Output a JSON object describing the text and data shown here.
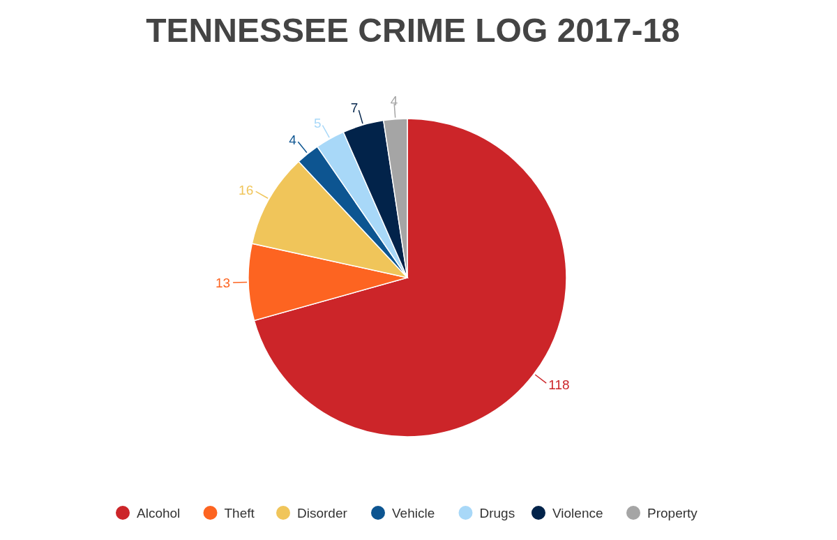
{
  "chart_data": {
    "type": "pie",
    "title": "TENNESSEE CRIME LOG 2017-18",
    "categories": [
      "Alcohol",
      "Theft",
      "Disorder",
      "Vehicle",
      "Drugs",
      "Violence",
      "Property"
    ],
    "values": [
      118,
      13,
      16,
      4,
      5,
      7,
      4
    ],
    "colors": [
      "#cc2529",
      "#fd6421",
      "#f0c55a",
      "#0d5591",
      "#a8d8f8",
      "#02234a",
      "#a5a5a5"
    ],
    "data_labels": true,
    "legend": "bottom"
  }
}
